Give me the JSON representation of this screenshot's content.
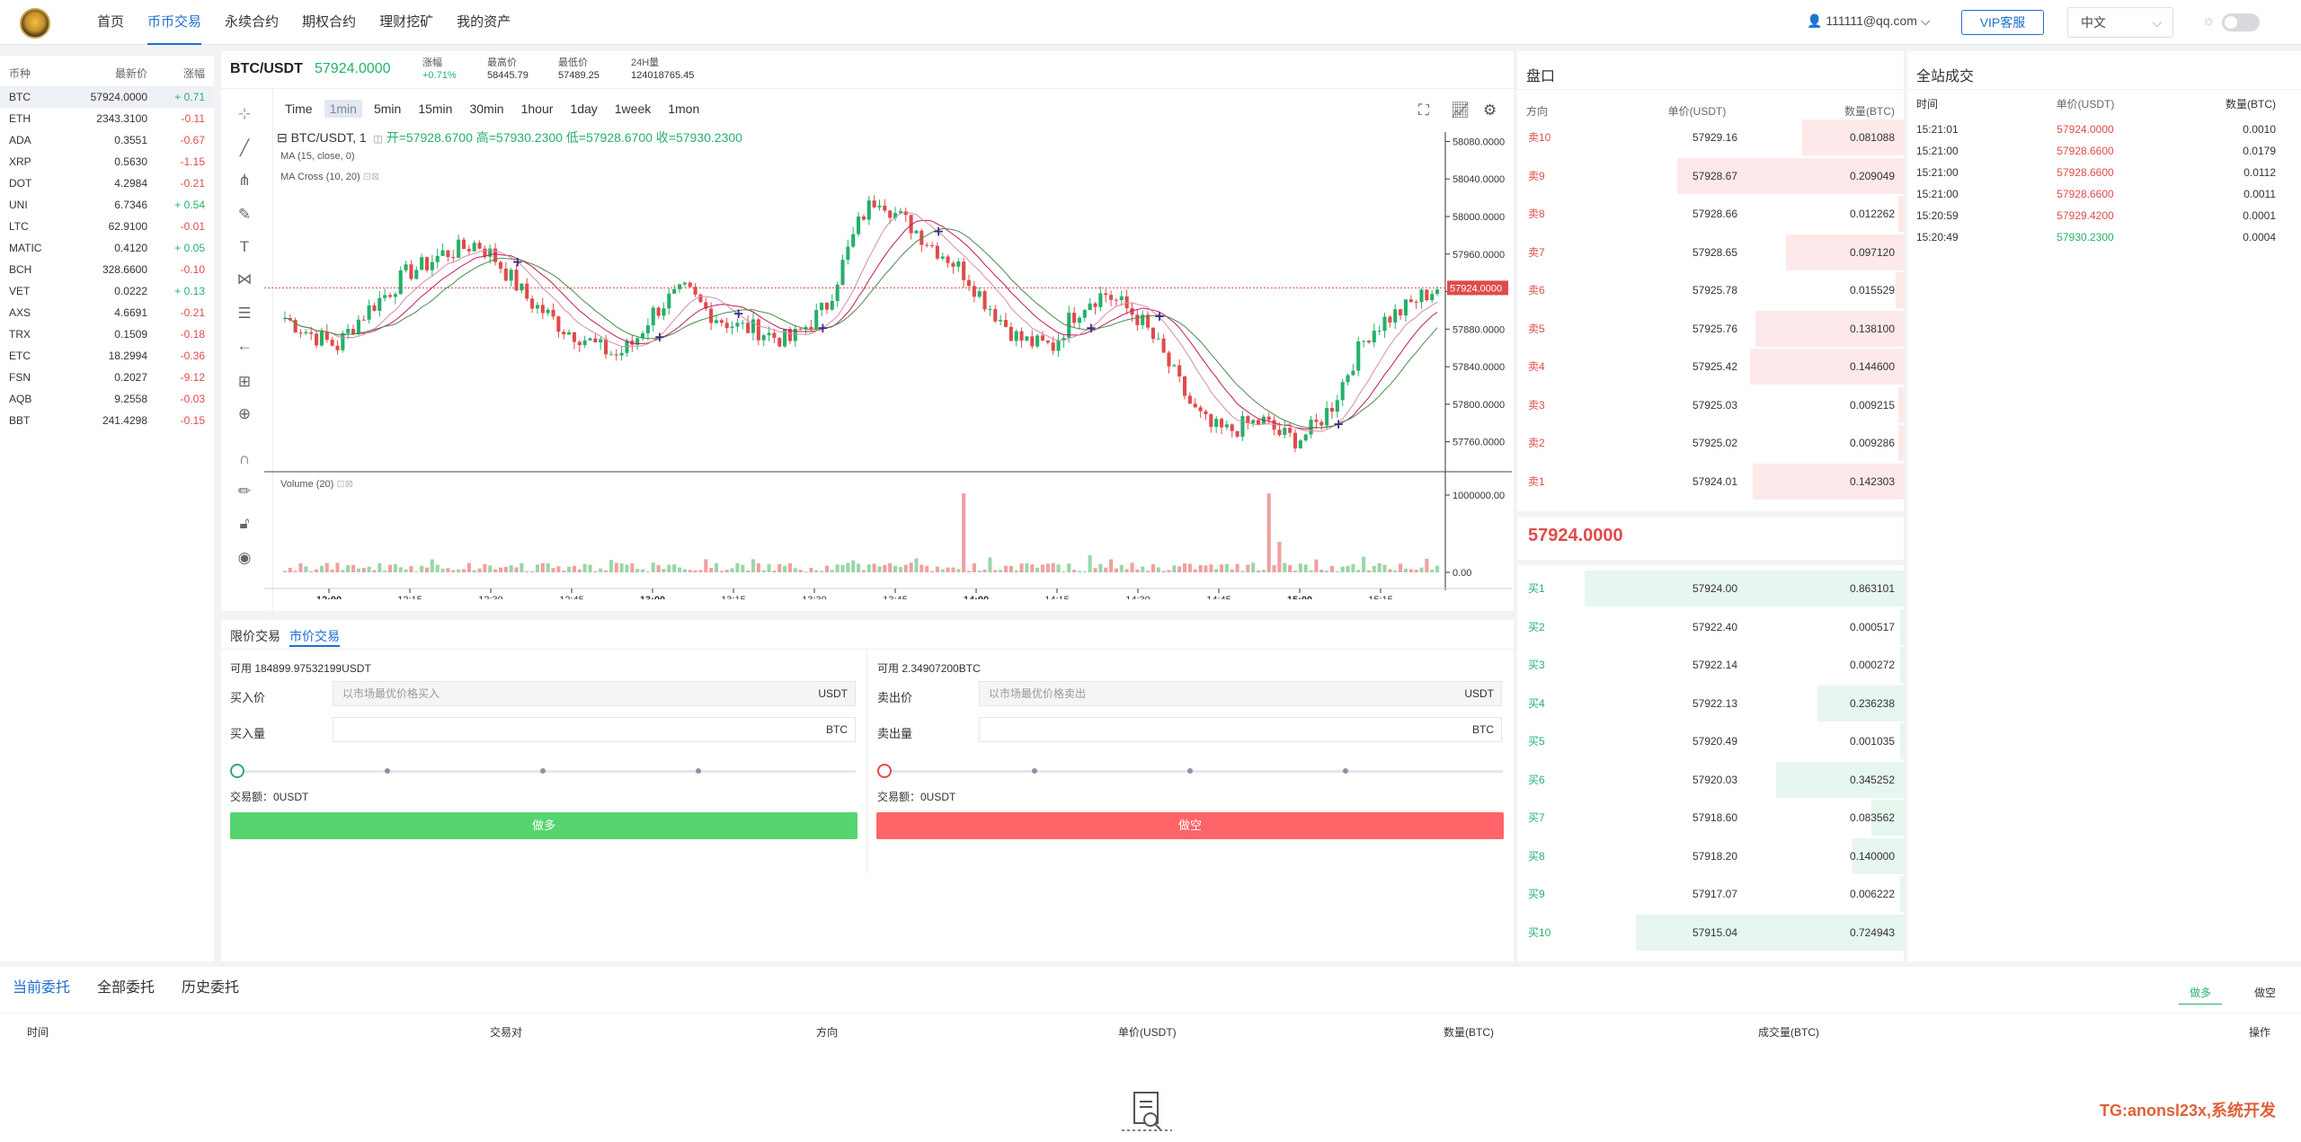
{
  "nav": {
    "items": [
      "首页",
      "币币交易",
      "永续合约",
      "期权合约",
      "理财挖矿",
      "我的资产"
    ],
    "user": "111111@qq.com",
    "vip": "VIP客服",
    "lang": "中文"
  },
  "markets": {
    "head": [
      "币种",
      "最新价",
      "涨幅"
    ],
    "rows": [
      {
        "sym": "BTC",
        "price": "57924.0000",
        "chg": "+ 0.71",
        "dir": "up"
      },
      {
        "sym": "ETH",
        "price": "2343.3100",
        "chg": "-0.11",
        "dir": "down"
      },
      {
        "sym": "ADA",
        "price": "0.3551",
        "chg": "-0.67",
        "dir": "down"
      },
      {
        "sym": "XRP",
        "price": "0.5630",
        "chg": "-1.15",
        "dir": "down"
      },
      {
        "sym": "DOT",
        "price": "4.2984",
        "chg": "-0.21",
        "dir": "down"
      },
      {
        "sym": "UNI",
        "price": "6.7346",
        "chg": "+ 0.54",
        "dir": "up"
      },
      {
        "sym": "LTC",
        "price": "62.9100",
        "chg": "-0.01",
        "dir": "down"
      },
      {
        "sym": "MATIC",
        "price": "0.4120",
        "chg": "+ 0.05",
        "dir": "up"
      },
      {
        "sym": "BCH",
        "price": "328.6600",
        "chg": "-0.10",
        "dir": "down"
      },
      {
        "sym": "VET",
        "price": "0.0222",
        "chg": "+ 0.13",
        "dir": "up"
      },
      {
        "sym": "AXS",
        "price": "4.6691",
        "chg": "-0.21",
        "dir": "down"
      },
      {
        "sym": "TRX",
        "price": "0.1509",
        "chg": "-0.18",
        "dir": "down"
      },
      {
        "sym": "ETC",
        "price": "18.2994",
        "chg": "-0.36",
        "dir": "down"
      },
      {
        "sym": "FSN",
        "price": "0.2027",
        "chg": "-9.12",
        "dir": "down"
      },
      {
        "sym": "AQB",
        "price": "9.2558",
        "chg": "-0.03",
        "dir": "down"
      },
      {
        "sym": "BBT",
        "price": "241.4298",
        "chg": "-0.15",
        "dir": "down"
      }
    ]
  },
  "symbol": {
    "pair": "BTC/USDT",
    "price": "57924.0000",
    "stats": [
      {
        "label": "涨幅",
        "value": "+0.71%"
      },
      {
        "label": "最高价",
        "value": "58445.79"
      },
      {
        "label": "最低价",
        "value": "57489.25"
      },
      {
        "label": "24H量",
        "value": "124018765.45"
      }
    ]
  },
  "timeframes": [
    "Time",
    "1min",
    "5min",
    "15min",
    "30min",
    "1hour",
    "1day",
    "1week",
    "1mon"
  ],
  "legend": {
    "title": "BTC/USDT, 1",
    "ohlc": "开=57928.6700  高=57930.2300  低=57928.6700  收=57930.2300",
    "ma": "MA (15, close, 0)",
    "cross": "MA Cross (10, 20)",
    "volume": "Volume (20)"
  },
  "chart_data": {
    "type": "candlestick",
    "title": "BTC/USDT, 1",
    "x_ticks": [
      "12:00",
      "12:15",
      "12:30",
      "12:45",
      "13:00",
      "13:15",
      "13:30",
      "13:45",
      "14:00",
      "14:15",
      "14:30",
      "14:45",
      "15:00",
      "15:15"
    ],
    "y_ticks": [
      57760,
      57800,
      57840,
      57880,
      57920,
      57960,
      58000,
      58040,
      58080
    ],
    "y_tick_labels": [
      "57760.0000",
      "57800.0000",
      "57840.0000",
      "57880.0000",
      "57920.0000",
      "57960.0000",
      "58000.0000",
      "58040.0000",
      "58080.0000"
    ],
    "ylim": [
      57730,
      58090
    ],
    "last_price": 57924,
    "last_price_label": "57924.0000",
    "volume_ticks": [
      "1000000.00",
      "0.00"
    ],
    "close_path": [
      57892,
      57880,
      57870,
      57862,
      57886,
      57905,
      57921,
      57940,
      57948,
      57960,
      57965,
      57972,
      57956,
      57933,
      57910,
      57896,
      57880,
      57872,
      57860,
      57852,
      57866,
      57896,
      57912,
      57921,
      57902,
      57890,
      57882,
      57880,
      57872,
      57868,
      57886,
      57904,
      57952,
      57999,
      58023,
      58002,
      57988,
      57970,
      57956,
      57938,
      57912,
      57890,
      57870,
      57864,
      57862,
      57892,
      57911,
      57918,
      57905,
      57890,
      57862,
      57829,
      57795,
      57775,
      57771,
      57778,
      57782,
      57768,
      57762,
      57776,
      57800,
      57840,
      57875,
      57890,
      57900,
      57914,
      57924
    ],
    "volume_spikes_at": [
      "13:52",
      "14:56"
    ]
  },
  "trade": {
    "tabs": [
      "限价交易",
      "市价交易"
    ],
    "buy": {
      "avail": "可用 184899.97532199USDT",
      "price_label": "买入价",
      "price_placeholder": "以市场最优价格买入",
      "price_unit": "USDT",
      "qty_label": "买入量",
      "qty_unit": "BTC",
      "amount": "交易额：0USDT",
      "button": "做多"
    },
    "sell": {
      "avail": "可用 2.34907200BTC",
      "price_label": "卖出价",
      "price_placeholder": "以市场最优价格卖出",
      "price_unit": "USDT",
      "qty_label": "卖出量",
      "qty_unit": "BTC",
      "amount": "交易额：0USDT",
      "button": "做空"
    }
  },
  "orderbook": {
    "title": "盘口",
    "head": [
      "方向",
      "单价(USDT)",
      "数量(BTC)"
    ],
    "asks": [
      {
        "label": "卖10",
        "price": "57929.16",
        "qty": "0.081088",
        "depth": 0.39
      },
      {
        "label": "卖9",
        "price": "57928.67",
        "qty": "0.209049",
        "depth": 0.87
      },
      {
        "label": "卖8",
        "price": "57928.66",
        "qty": "0.012262",
        "depth": 0.02
      },
      {
        "label": "卖7",
        "price": "57928.65",
        "qty": "0.097120",
        "depth": 0.45
      },
      {
        "label": "卖6",
        "price": "57925.78",
        "qty": "0.015529",
        "depth": 0.03
      },
      {
        "label": "卖5",
        "price": "57925.76",
        "qty": "0.138100",
        "depth": 0.57
      },
      {
        "label": "卖4",
        "price": "57925.42",
        "qty": "0.144600",
        "depth": 0.59
      },
      {
        "label": "卖3",
        "price": "57925.03",
        "qty": "0.009215",
        "depth": 0.02
      },
      {
        "label": "卖2",
        "price": "57925.02",
        "qty": "0.009286",
        "depth": 0.02
      },
      {
        "label": "卖1",
        "price": "57924.01",
        "qty": "0.142303",
        "depth": 0.58
      }
    ],
    "last": "57924.0000",
    "bids": [
      {
        "label": "买1",
        "price": "57924.00",
        "qty": "0.863101",
        "depth": 1.0
      },
      {
        "label": "买2",
        "price": "57922.40",
        "qty": "0.000517",
        "depth": 0.01
      },
      {
        "label": "买3",
        "price": "57922.14",
        "qty": "0.000272",
        "depth": 0.01
      },
      {
        "label": "买4",
        "price": "57922.13",
        "qty": "0.236238",
        "depth": 0.27
      },
      {
        "label": "买5",
        "price": "57920.49",
        "qty": "0.001035",
        "depth": 0.01
      },
      {
        "label": "买6",
        "price": "57920.03",
        "qty": "0.345252",
        "depth": 0.4
      },
      {
        "label": "买7",
        "price": "57918.60",
        "qty": "0.083562",
        "depth": 0.1
      },
      {
        "label": "买8",
        "price": "57918.20",
        "qty": "0.140000",
        "depth": 0.16
      },
      {
        "label": "买9",
        "price": "57917.07",
        "qty": "0.006222",
        "depth": 0.01
      },
      {
        "label": "买10",
        "price": "57915.04",
        "qty": "0.724943",
        "depth": 0.84
      }
    ]
  },
  "trades": {
    "title": "全站成交",
    "head": [
      "时间",
      "单价(USDT)",
      "数量(BTC)"
    ],
    "rows": [
      {
        "time": "15:21:01",
        "price": "57924.0000",
        "qty": "0.0010",
        "dir": "down"
      },
      {
        "time": "15:21:00",
        "price": "57928.6600",
        "qty": "0.0179",
        "dir": "down"
      },
      {
        "time": "15:21:00",
        "price": "57928.6600",
        "qty": "0.0112",
        "dir": "down"
      },
      {
        "time": "15:21:00",
        "price": "57928.6600",
        "qty": "0.0011",
        "dir": "down"
      },
      {
        "time": "15:20:59",
        "price": "57929.4200",
        "qty": "0.0001",
        "dir": "down"
      },
      {
        "time": "15:20:49",
        "price": "57930.2300",
        "qty": "0.0004",
        "dir": "up"
      }
    ]
  },
  "orders": {
    "tabs": [
      "当前委托",
      "全部委托",
      "历史委托"
    ],
    "filters": [
      "做多",
      "做空"
    ],
    "head": [
      "时间",
      "交易对",
      "方向",
      "单价(USDT)",
      "数量(BTC)",
      "成交量(BTC)",
      "操作"
    ]
  },
  "watermark": "TG:anonsl23x,系统开发",
  "colors": {
    "up": "#25b06b",
    "down": "#e04b4b",
    "accent": "#1e6fd0",
    "buy_btn": "#56d46e",
    "sell_btn": "#ff6468"
  }
}
